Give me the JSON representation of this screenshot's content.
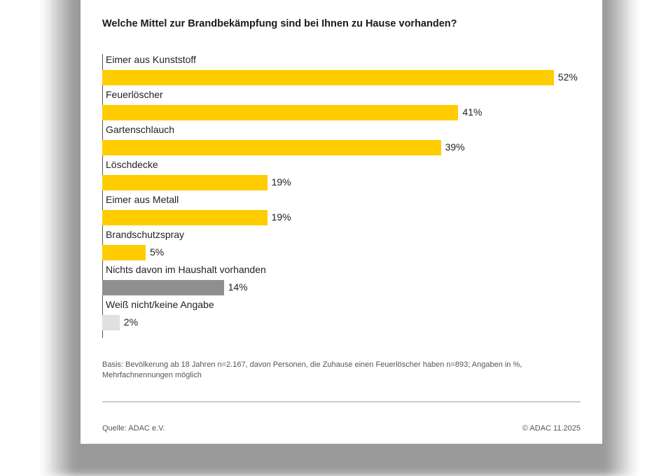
{
  "chart_data": {
    "type": "bar",
    "orientation": "horizontal",
    "title": "Welche Mittel zur Brandbekämpfung sind bei Ihnen zu Hause vorhanden?",
    "categories": [
      "Eimer aus Kunststoff",
      "Feuerlöscher",
      "Gartenschlauch",
      "Löschdecke",
      "Eimer aus Metall",
      "Brandschutzspray",
      "Nichts davon im Haushalt vorhanden",
      "Weiß nicht/keine Angabe"
    ],
    "values": [
      52,
      41,
      39,
      19,
      19,
      5,
      14,
      2
    ],
    "value_labels": [
      "52%",
      "41%",
      "39%",
      "19%",
      "19%",
      "5%",
      "14%",
      "2%"
    ],
    "bar_colors": [
      "#FFCC00",
      "#FFCC00",
      "#FFCC00",
      "#FFCC00",
      "#FFCC00",
      "#FFCC00",
      "#8F8F8F",
      "#E0E0E0"
    ],
    "unit": "%",
    "grid": false
  },
  "footer": {
    "note": "Basis: Bevölkerung ab 18 Jahren n=2.167, davon Personen, die Zuhause einen Feuerlöscher haben n=893; Angaben in %, Mehrfachnennungen möglich",
    "source": "Quelle: ADAC e.V.",
    "copyright": "© ADAC 11.2025"
  }
}
